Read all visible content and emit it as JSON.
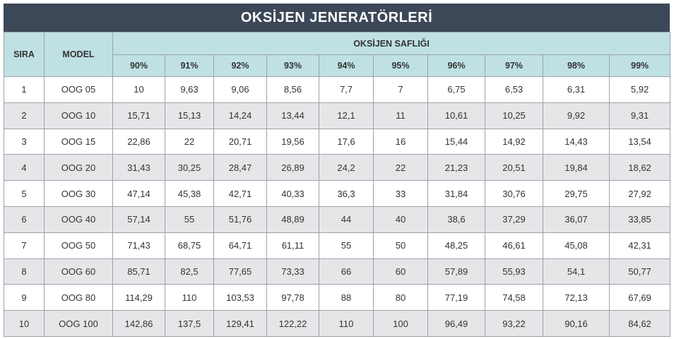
{
  "title": "OKSİJEN JENERATÖRLERİ",
  "table": {
    "headers": [
      "SIRA",
      "MODEL"
    ],
    "group_header": "OKSİJEN SAFLIĞI",
    "columns": [
      "90%",
      "91%",
      "92%",
      "93%",
      "94%",
      "95%",
      "96%",
      "97%",
      "98%",
      "99%"
    ],
    "rows": [
      [
        "1",
        "OOG 05",
        "10",
        "9,63",
        "9,06",
        "8,56",
        "7,7",
        "7",
        "6,75",
        "6,53",
        "6,31",
        "5,92"
      ],
      [
        "2",
        "OOG 10",
        "15,71",
        "15,13",
        "14,24",
        "13,44",
        "12,1",
        "11",
        "10,61",
        "10,25",
        "9,92",
        "9,31"
      ],
      [
        "3",
        "OOG 15",
        "22,86",
        "22",
        "20,71",
        "19,56",
        "17,6",
        "16",
        "15,44",
        "14,92",
        "14,43",
        "13,54"
      ],
      [
        "4",
        "OOG 20",
        "31,43",
        "30,25",
        "28,47",
        "26,89",
        "24,2",
        "22",
        "21,23",
        "20,51",
        "19,84",
        "18,62"
      ],
      [
        "5",
        "OOG 30",
        "47,14",
        "45,38",
        "42,71",
        "40,33",
        "36,3",
        "33",
        "31,84",
        "30,76",
        "29,75",
        "27,92"
      ],
      [
        "6",
        "OOG 40",
        "57,14",
        "55",
        "51,76",
        "48,89",
        "44",
        "40",
        "38,6",
        "37,29",
        "36,07",
        "33,85"
      ],
      [
        "7",
        "OOG 50",
        "71,43",
        "68,75",
        "64,71",
        "61,11",
        "55",
        "50",
        "48,25",
        "46,61",
        "45,08",
        "42,31"
      ],
      [
        "8",
        "OOG 60",
        "85,71",
        "82,5",
        "77,65",
        "73,33",
        "66",
        "60",
        "57,89",
        "55,93",
        "54,1",
        "50,77"
      ],
      [
        "9",
        "OOG 80",
        "114,29",
        "110",
        "103,53",
        "97,78",
        "88",
        "80",
        "77,19",
        "74,58",
        "72,13",
        "67,69"
      ],
      [
        "10",
        "OOG 100",
        "142,86",
        "137,5",
        "129,41",
        "122,22",
        "110",
        "100",
        "96,49",
        "93,22",
        "90,16",
        "84,62"
      ]
    ]
  }
}
